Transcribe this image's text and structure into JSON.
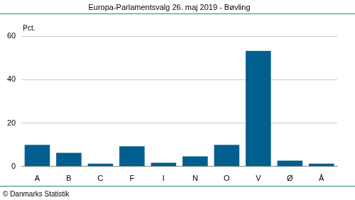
{
  "chart_data": {
    "type": "bar",
    "title": "Europa-Parlamentsvalg 26. maj 2019 - Bøvling",
    "y_label": "Pct.",
    "source": "© Danmarks Statistik",
    "categories": [
      "A",
      "B",
      "C",
      "F",
      "I",
      "N",
      "O",
      "V",
      "Ø",
      "Å"
    ],
    "values": [
      10.0,
      6.3,
      1.3,
      9.3,
      1.7,
      4.7,
      10.0,
      53.3,
      2.7,
      1.3
    ],
    "color": "#005f8f",
    "ylim": [
      0,
      60
    ],
    "yticks": [
      0,
      20,
      40,
      60
    ],
    "grid": true
  }
}
